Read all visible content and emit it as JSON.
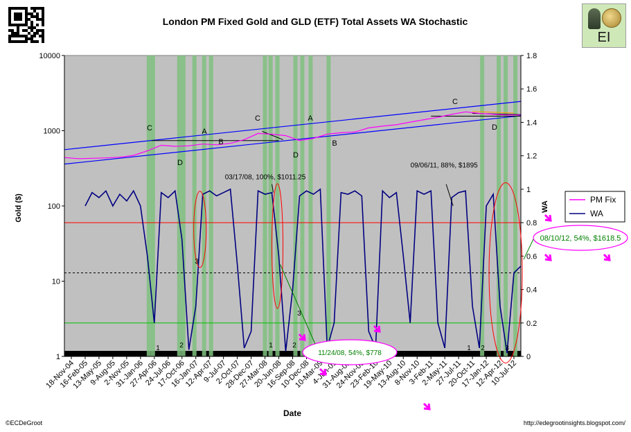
{
  "chart_data": {
    "type": "line",
    "title": "London PM Fixed Gold and GLD (ETF) Total Assets WA Stochastic",
    "xlabel": "Date",
    "ylabel": "Gold ($)",
    "y2label": "WA",
    "y_scale": "log",
    "ylim": [
      1,
      10000
    ],
    "y2lim": [
      0,
      1.8
    ],
    "y_ticks": [
      "1",
      "10",
      "100",
      "1000",
      "10000"
    ],
    "y2_ticks": [
      "0",
      "0.2",
      "0.4",
      "0.6",
      "0.8",
      "1",
      "1.2",
      "1.4",
      "1.6",
      "1.8"
    ],
    "x_ticks": [
      "18-Nov-04",
      "16-Feb-05",
      "13-May-05",
      "9-Aug-05",
      "2-Nov-05",
      "31-Jan-06",
      "27-Apr-06",
      "24-Jul-06",
      "17-Oct-06",
      "16-Jan-07",
      "12-Apr-07",
      "9-Jul-07",
      "2-Oct-07",
      "28-Dec-07",
      "27-Mar-08",
      "20-Jun-08",
      "16-Sep-08",
      "10-Dec-08",
      "10-Mar-09",
      "4-Jun-09",
      "31-Aug-09",
      "24-Nov-09",
      "23-Feb-10",
      "19-May-10",
      "13-Aug-10",
      "8-Nov-10",
      "3-Feb-11",
      "2-May-11",
      "27-Jul-11",
      "20-Oct-11",
      "17-Jan-12",
      "12-Apr-12",
      "10-Jul-12"
    ],
    "series": [
      {
        "name": "PM Fix",
        "color": "#ff00ff",
        "x": [
          0,
          1,
          2,
          3,
          4,
          5,
          6,
          7,
          8,
          9,
          10,
          11,
          12,
          13,
          14,
          15,
          16,
          17,
          18,
          19,
          20,
          21,
          22,
          23,
          24,
          25,
          26,
          27,
          28,
          29,
          30,
          31,
          32,
          33
        ],
        "values": [
          440,
          425,
          430,
          435,
          445,
          470,
          540,
          640,
          620,
          630,
          665,
          650,
          680,
          760,
          920,
          900,
          860,
          740,
          790,
          900,
          940,
          960,
          1090,
          1150,
          1200,
          1300,
          1400,
          1510,
          1650,
          1780,
          1700,
          1650,
          1620,
          1620
        ]
      },
      {
        "name": "WA",
        "color": "#000080",
        "x": [
          1.5,
          2,
          2.5,
          3,
          3.5,
          4,
          4.5,
          5,
          5.5,
          6,
          6.5,
          7,
          7.5,
          8,
          8.5,
          9,
          9.5,
          10,
          10.5,
          11,
          11.5,
          12,
          12.5,
          13,
          13.5,
          14,
          14.5,
          15,
          15.5,
          16,
          16.5,
          17,
          17.5,
          18,
          18.5,
          19,
          19.5,
          20,
          20.5,
          21,
          21.5,
          22,
          22.5,
          23,
          23.5,
          24,
          24.5,
          25,
          25.5,
          26,
          26.5,
          27,
          27.5,
          28,
          28.5,
          29,
          29.5,
          30,
          30.5,
          31,
          31.5,
          32,
          32.5,
          33
        ],
        "values": [
          0.9,
          0.98,
          0.95,
          0.99,
          0.9,
          0.97,
          0.93,
          0.99,
          0.9,
          0.6,
          0.2,
          0.98,
          0.95,
          0.99,
          0.7,
          0.04,
          0.3,
          0.97,
          0.99,
          0.96,
          0.98,
          1.0,
          0.55,
          0.05,
          0.15,
          0.99,
          0.97,
          0.98,
          0.6,
          0.03,
          0.4,
          0.96,
          0.99,
          0.97,
          1.0,
          0.05,
          0.2,
          0.98,
          0.97,
          0.99,
          0.96,
          0.15,
          0.05,
          0.99,
          0.95,
          0.98,
          0.6,
          0.2,
          0.99,
          0.97,
          0.99,
          0.2,
          0.05,
          0.95,
          0.98,
          0.99,
          0.3,
          0.05,
          0.9,
          0.97,
          0.3,
          0.02,
          0.5,
          0.54
        ]
      }
    ],
    "reference_lines": [
      {
        "axis": "y2",
        "value": 0.8,
        "color": "#ff0000",
        "style": "solid"
      },
      {
        "axis": "y2",
        "value": 0.5,
        "color": "#000000",
        "style": "dashed"
      },
      {
        "axis": "y2",
        "value": 0.2,
        "color": "#00c000",
        "style": "solid"
      }
    ],
    "green_bar_positions": [
      6.1,
      6.4,
      8.3,
      8.6,
      9.4,
      10.1,
      10.6,
      14.5,
      14.9,
      15.4,
      16.7,
      17.2,
      17.8,
      19.1,
      30.2,
      31.4,
      31.9,
      32.6
    ],
    "annotations": [
      {
        "text": "03/17/08, 100%, $1011.25",
        "color": "#000000"
      },
      {
        "text": "09/06/11, 88%, $1895",
        "color": "#000000"
      },
      {
        "text": "11/24/08, 54%, $778",
        "color": "#008000"
      },
      {
        "text": "08/10/12, 54%, $1618.5",
        "color": "#008000"
      },
      {
        "text": "C"
      },
      {
        "text": "A"
      },
      {
        "text": "D"
      },
      {
        "text": "B"
      },
      {
        "text": "C"
      },
      {
        "text": "A"
      },
      {
        "text": "D"
      },
      {
        "text": "B"
      },
      {
        "text": "C"
      },
      {
        "text": "D"
      },
      {
        "text": "1"
      },
      {
        "text": "2"
      },
      {
        "text": "3"
      },
      {
        "text": "1"
      },
      {
        "text": "2"
      },
      {
        "text": "3"
      },
      {
        "text": "1"
      },
      {
        "text": "2"
      },
      {
        "text": "3"
      }
    ],
    "legend": {
      "position": "right",
      "entries": [
        "PM Fix",
        "WA"
      ]
    }
  },
  "footer": {
    "left": "©ECDeGroot",
    "right": "http://edegrootinsights.blogspot.com/"
  },
  "logo": {
    "text": "EI"
  }
}
